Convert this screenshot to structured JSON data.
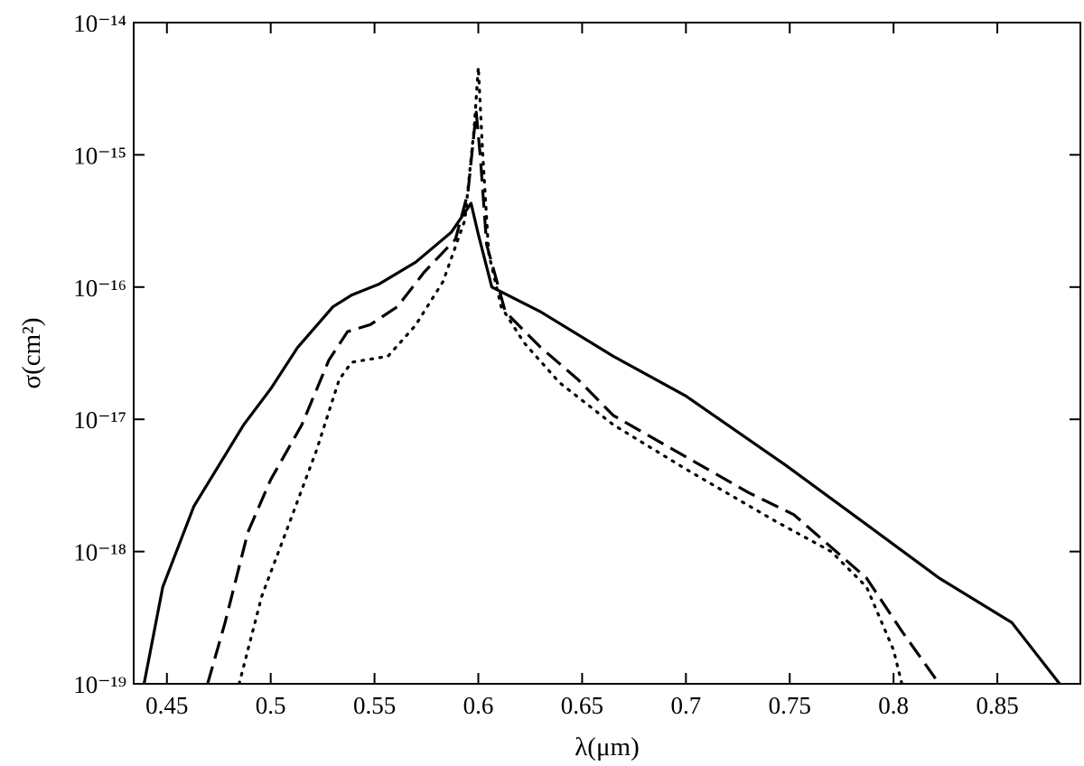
{
  "chart_data": {
    "type": "line",
    "xlabel": "λ(μm)",
    "ylabel": "σ(cm²)",
    "xlim": [
      0.434,
      0.89
    ],
    "xticks": [
      0.45,
      0.5,
      0.55,
      0.6,
      0.65,
      0.7,
      0.75,
      0.8,
      0.85
    ],
    "ylim": [
      1e-19,
      1e-14
    ],
    "yscale": "log",
    "yticks": [
      {
        "value": 1e-19,
        "label": "10⁻¹⁹"
      },
      {
        "value": 1e-18,
        "label": "10⁻¹⁸"
      },
      {
        "value": 1e-17,
        "label": "10⁻¹⁷"
      },
      {
        "value": 1e-16,
        "label": "10⁻¹⁶"
      },
      {
        "value": 1e-15,
        "label": "10⁻¹⁵"
      },
      {
        "value": 1e-14,
        "label": "10⁻¹⁴"
      }
    ],
    "grid": false,
    "series": [
      {
        "color": "#000000",
        "dash": "solid",
        "x": [
          0.439,
          0.448,
          0.463,
          0.487,
          0.5,
          0.513,
          0.53,
          0.539,
          0.552,
          0.57,
          0.587,
          0.5965,
          0.6,
          0.6065,
          0.63,
          0.665,
          0.7,
          0.748,
          0.787,
          0.822,
          0.857,
          0.88
        ],
        "values": [
          1e-19,
          5.4e-19,
          2.2e-18,
          9.1e-18,
          1.7e-17,
          3.5e-17,
          7.1e-17,
          8.7e-17,
          1.05e-16,
          1.55e-16,
          2.6e-16,
          4.3e-16,
          2.5e-16,
          1e-16,
          6.5e-17,
          3e-17,
          1.5e-17,
          4.5e-18,
          1.6e-18,
          6.3e-19,
          2.9e-19,
          1e-19
        ]
      },
      {
        "color": "#000000",
        "dash": "dashed",
        "x": [
          0.4696,
          0.478,
          0.489,
          0.5,
          0.515,
          0.528,
          0.537,
          0.548,
          0.561,
          0.574,
          0.589,
          0.595,
          0.598,
          0.599,
          0.601,
          0.604,
          0.613,
          0.63,
          0.648,
          0.665,
          0.7,
          0.73,
          0.752,
          0.787,
          0.804,
          0.822
        ],
        "values": [
          1e-19,
          2.9e-19,
          1.4e-18,
          3.5e-18,
          9.1e-18,
          2.8e-17,
          4.6e-17,
          5.2e-17,
          7.1e-17,
          1.3e-16,
          2.3e-16,
          5.2e-16,
          1.5e-15,
          2.1e-15,
          9.5e-16,
          2.1e-16,
          6.5e-17,
          3.5e-17,
          2e-17,
          1.07e-17,
          5.2e-18,
          2.8e-18,
          1.9e-18,
          6.3e-19,
          2.5e-19,
          1e-19
        ]
      },
      {
        "color": "#000000",
        "dash": "dotted",
        "x": [
          0.4848,
          0.4957,
          0.5087,
          0.522,
          0.533,
          0.539,
          0.5565,
          0.5696,
          0.583,
          0.5935,
          0.598,
          0.6,
          0.602,
          0.605,
          0.611,
          0.622,
          0.639,
          0.665,
          0.7,
          0.743,
          0.77,
          0.787,
          0.8,
          0.804
        ],
        "values": [
          1e-19,
          4.6e-19,
          1.6e-18,
          5.8e-18,
          2e-17,
          2.7e-17,
          3e-17,
          5.1e-17,
          1.1e-16,
          3.2e-16,
          1.6e-15,
          4.6e-15,
          1.1e-15,
          1.8e-16,
          7.1e-17,
          3.8e-17,
          1.9e-17,
          9.1e-18,
          4.2e-18,
          1.7e-18,
          1e-18,
          5.4e-19,
          1.8e-19,
          1e-19
        ]
      }
    ]
  }
}
